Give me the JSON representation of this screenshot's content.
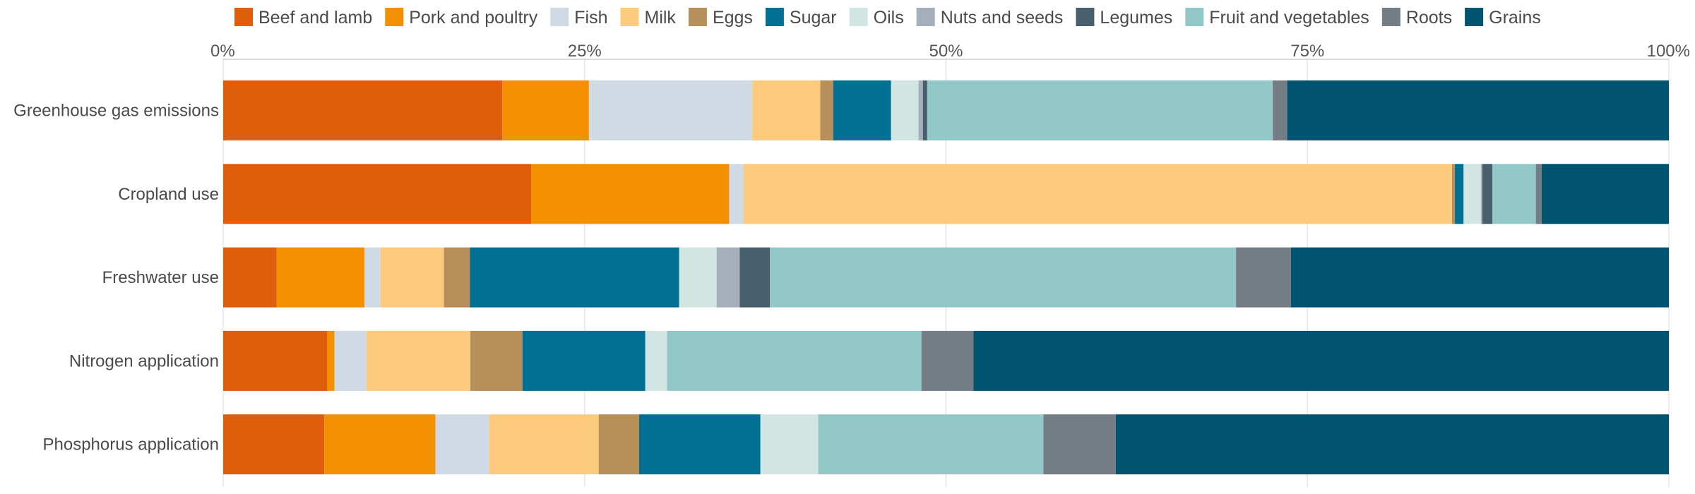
{
  "chart_data": {
    "type": "bar",
    "orientation": "horizontal",
    "stacked": true,
    "normalized": "percent",
    "xlim": [
      0,
      100
    ],
    "x_ticks": [
      "0%",
      "25%",
      "50%",
      "75%",
      "100%"
    ],
    "x_tick_values": [
      0,
      25,
      50,
      75,
      100
    ],
    "grid": true,
    "legend_position": "top",
    "categories": [
      "Greenhouse gas emissions",
      "Cropland use",
      "Freshwater use",
      "Nitrogen application",
      "Phosphorus application"
    ],
    "series": [
      {
        "name": "Beef and lamb",
        "color": "#e05d0b",
        "values": [
          19.3,
          21.3,
          3.7,
          7.2,
          7.0
        ]
      },
      {
        "name": "Pork and poultry",
        "color": "#f39001",
        "values": [
          6.0,
          13.7,
          6.1,
          0.5,
          7.7
        ]
      },
      {
        "name": "Fish",
        "color": "#d0dae4",
        "values": [
          11.3,
          1.0,
          1.1,
          2.2,
          3.7
        ]
      },
      {
        "name": "Milk",
        "color": "#fbca7d",
        "values": [
          4.7,
          49.0,
          4.4,
          7.2,
          7.6
        ]
      },
      {
        "name": "Eggs",
        "color": "#b78f5a",
        "values": [
          0.9,
          0.2,
          1.8,
          3.6,
          2.8
        ]
      },
      {
        "name": "Sugar",
        "color": "#007093",
        "values": [
          4.0,
          0.6,
          14.5,
          8.5,
          8.4
        ]
      },
      {
        "name": "Oils",
        "color": "#d1e6e3",
        "values": [
          1.9,
          1.2,
          2.6,
          1.5,
          4.0
        ]
      },
      {
        "name": "Nuts and seeds",
        "color": "#a4afbb",
        "values": [
          0.3,
          0.1,
          1.6,
          0,
          0
        ]
      },
      {
        "name": "Legumes",
        "color": "#485f6e",
        "values": [
          0.3,
          0.7,
          2.1,
          0,
          0
        ]
      },
      {
        "name": "Fruit and vegetables",
        "color": "#93c8c8",
        "values": [
          23.9,
          3.0,
          32.3,
          17.6,
          15.6
        ]
      },
      {
        "name": "Roots",
        "color": "#747c86",
        "values": [
          1.0,
          0.4,
          3.8,
          3.6,
          5.0
        ]
      },
      {
        "name": "Grains",
        "color": "#005470",
        "values": [
          26.4,
          8.8,
          26.2,
          48.1,
          38.3
        ]
      }
    ]
  }
}
